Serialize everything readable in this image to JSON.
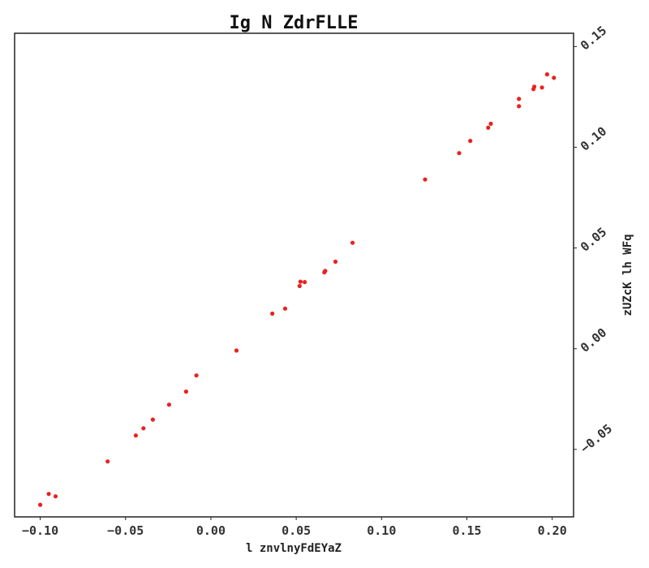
{
  "chart_data": {
    "type": "scatter",
    "title": "Ig N ZdrFLLE",
    "xlabel": "l znvlnyFdEYaZ",
    "ylabel": "zUZcK lh WFq",
    "xlim": [
      -0.115,
      0.2125
    ],
    "ylim": [
      -0.0835,
      0.1566
    ],
    "x_ticks": [
      -0.1,
      -0.05,
      0.0,
      0.05,
      0.1,
      0.15,
      0.2
    ],
    "x_tick_labels": [
      "−0.10",
      "−0.05",
      "0.00",
      "0.05",
      "0.10",
      "0.15",
      "0.20"
    ],
    "y_ticks": [
      -0.05,
      0.0,
      0.05,
      0.1,
      0.15
    ],
    "y_tick_labels": [
      "−0.05",
      "0.00",
      "0.05",
      "0.10",
      "0.15"
    ],
    "y_axis_side": "right",
    "grid": false,
    "color": "#e8231e",
    "points": [
      {
        "x": -0.1,
        "y": -0.0775
      },
      {
        "x": -0.095,
        "y": -0.0721
      },
      {
        "x": -0.091,
        "y": -0.0733
      },
      {
        "x": -0.0605,
        "y": -0.056
      },
      {
        "x": -0.044,
        "y": -0.0431
      },
      {
        "x": -0.0395,
        "y": -0.0395
      },
      {
        "x": -0.034,
        "y": -0.0352
      },
      {
        "x": -0.0245,
        "y": -0.0278
      },
      {
        "x": -0.0145,
        "y": -0.0213
      },
      {
        "x": -0.0085,
        "y": -0.0133
      },
      {
        "x": 0.015,
        "y": -0.0009
      },
      {
        "x": 0.036,
        "y": 0.0174
      },
      {
        "x": 0.0435,
        "y": 0.0199
      },
      {
        "x": 0.052,
        "y": 0.0311
      },
      {
        "x": 0.0525,
        "y": 0.0333
      },
      {
        "x": 0.055,
        "y": 0.0331
      },
      {
        "x": 0.0665,
        "y": 0.0379
      },
      {
        "x": 0.067,
        "y": 0.0386
      },
      {
        "x": 0.073,
        "y": 0.0432
      },
      {
        "x": 0.083,
        "y": 0.0526
      },
      {
        "x": 0.1255,
        "y": 0.084
      },
      {
        "x": 0.1455,
        "y": 0.0971
      },
      {
        "x": 0.152,
        "y": 0.1032
      },
      {
        "x": 0.1625,
        "y": 0.1097
      },
      {
        "x": 0.164,
        "y": 0.1117
      },
      {
        "x": 0.1805,
        "y": 0.1204
      },
      {
        "x": 0.1805,
        "y": 0.124
      },
      {
        "x": 0.189,
        "y": 0.1289
      },
      {
        "x": 0.1895,
        "y": 0.1301
      },
      {
        "x": 0.194,
        "y": 0.1297
      },
      {
        "x": 0.197,
        "y": 0.1362
      },
      {
        "x": 0.201,
        "y": 0.1345
      }
    ]
  }
}
